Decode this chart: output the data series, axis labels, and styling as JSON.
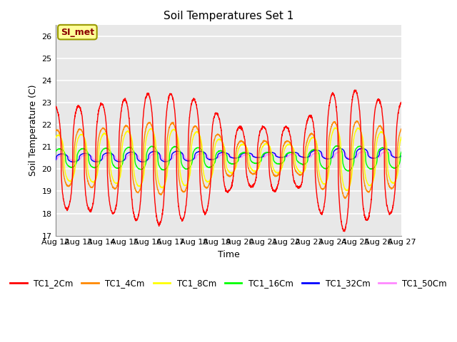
{
  "title": "Soil Temperatures Set 1",
  "xlabel": "Time",
  "ylabel": "Soil Temperature (C)",
  "annotation": "SI_met",
  "ylim": [
    17.0,
    26.5
  ],
  "yticks": [
    17.0,
    18.0,
    19.0,
    20.0,
    21.0,
    22.0,
    23.0,
    24.0,
    25.0,
    26.0
  ],
  "series_colors": {
    "TC1_2Cm": "#FF0000",
    "TC1_4Cm": "#FF8800",
    "TC1_8Cm": "#FFFF00",
    "TC1_16Cm": "#00FF00",
    "TC1_32Cm": "#0000FF",
    "TC1_50Cm": "#FF88FF"
  },
  "legend_colors": [
    "#FF0000",
    "#FF8800",
    "#FFFF00",
    "#00FF00",
    "#0000FF",
    "#FF88FF"
  ],
  "legend_labels": [
    "TC1_2Cm",
    "TC1_4Cm",
    "TC1_8Cm",
    "TC1_16Cm",
    "TC1_32Cm",
    "TC1_50Cm"
  ],
  "bg_color": "#E8E8E8",
  "grid_color": "white",
  "start_day": 12,
  "end_day": 27,
  "points_per_day": 144
}
